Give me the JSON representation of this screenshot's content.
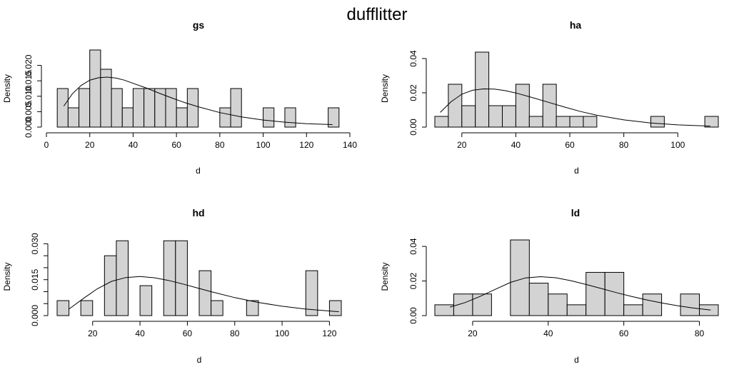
{
  "figure_title": "dufflitter",
  "chart_data": [
    {
      "type": "bar",
      "title": "gs",
      "xlabel": "d",
      "ylabel": "Density",
      "xlim": [
        0,
        140
      ],
      "ylim": [
        0,
        0.025
      ],
      "x_ticks": [
        0,
        20,
        40,
        60,
        80,
        100,
        120,
        140
      ],
      "x_tick_labels": [
        "0",
        "20",
        "40",
        "60",
        "80",
        "100",
        "120",
        "140"
      ],
      "y_ticks": [
        0,
        0.005,
        0.01,
        0.015,
        0.02
      ],
      "y_tick_labels": [
        "0.000",
        "0.005",
        "0.010",
        "0.015",
        "0.020"
      ],
      "bin_edges": [
        5,
        10,
        15,
        20,
        25,
        30,
        35,
        40,
        45,
        50,
        55,
        60,
        65,
        70,
        75,
        80,
        85,
        90,
        95,
        100,
        105,
        110,
        115,
        120,
        125,
        130,
        135
      ],
      "values": [
        0.0125,
        0.00625,
        0.0125,
        0.025,
        0.01875,
        0.0125,
        0.00625,
        0.0125,
        0.0125,
        0.0125,
        0.0125,
        0.00625,
        0.0125,
        0,
        0,
        0.00625,
        0.0125,
        0,
        0,
        0.00625,
        0,
        0.00625,
        0,
        0,
        0,
        0.00625
      ],
      "curve": {
        "x": [
          8,
          12,
          16,
          20,
          24,
          28,
          32,
          36,
          40,
          46,
          52,
          58,
          64,
          70,
          80,
          90,
          100,
          110,
          120,
          132
        ],
        "y": [
          0.0068,
          0.0108,
          0.0135,
          0.0152,
          0.016,
          0.0162,
          0.0159,
          0.0152,
          0.0142,
          0.0127,
          0.011,
          0.0094,
          0.0079,
          0.0066,
          0.0047,
          0.0033,
          0.0023,
          0.0016,
          0.0011,
          0.0008
        ]
      }
    },
    {
      "type": "bar",
      "title": "ha",
      "xlabel": "d",
      "ylabel": "Density",
      "xlim": [
        10,
        115
      ],
      "ylim": [
        0,
        0.045
      ],
      "x_ticks": [
        20,
        40,
        60,
        80,
        100
      ],
      "x_tick_labels": [
        "20",
        "40",
        "60",
        "80",
        "100"
      ],
      "y_ticks": [
        0,
        0.02,
        0.04
      ],
      "y_tick_labels": [
        "0.00",
        "0.02",
        "0.04"
      ],
      "bin_edges": [
        10,
        15,
        20,
        25,
        30,
        35,
        40,
        45,
        50,
        55,
        60,
        65,
        70,
        75,
        80,
        85,
        90,
        95,
        100,
        105,
        110,
        115
      ],
      "values": [
        0.00625,
        0.025,
        0.0125,
        0.04375,
        0.0125,
        0.0125,
        0.025,
        0.00625,
        0.025,
        0.00625,
        0.00625,
        0.00625,
        0,
        0,
        0,
        0,
        0.00625,
        0,
        0,
        0,
        0.00625
      ],
      "curve": {
        "x": [
          12,
          16,
          20,
          24,
          28,
          32,
          36,
          40,
          46,
          52,
          58,
          64,
          70,
          80,
          90,
          100,
          112
        ],
        "y": [
          0.0086,
          0.0148,
          0.0192,
          0.0215,
          0.0223,
          0.0222,
          0.0213,
          0.0199,
          0.0173,
          0.0145,
          0.0117,
          0.0091,
          0.0069,
          0.0042,
          0.0024,
          0.0013,
          0.0006
        ]
      }
    },
    {
      "type": "bar",
      "title": "hd",
      "xlabel": "d",
      "ylabel": "Density",
      "xlim": [
        5,
        125
      ],
      "ylim": [
        0,
        0.0325
      ],
      "x_ticks": [
        20,
        40,
        60,
        80,
        100,
        120
      ],
      "x_tick_labels": [
        "20",
        "40",
        "60",
        "80",
        "100",
        "120"
      ],
      "y_ticks": [
        0,
        0.005,
        0.01,
        0.015,
        0.02,
        0.025,
        0.03
      ],
      "y_tick_labels": [
        "0.000",
        "",
        "",
        "0.015",
        "",
        "",
        "0.030"
      ],
      "bin_edges": [
        5,
        10,
        15,
        20,
        25,
        30,
        35,
        40,
        45,
        50,
        55,
        60,
        65,
        70,
        75,
        80,
        85,
        90,
        95,
        100,
        105,
        110,
        115,
        120,
        125
      ],
      "values": [
        0.00625,
        0,
        0.00625,
        0,
        0.025,
        0.03125,
        0,
        0.0125,
        0,
        0.03125,
        0.03125,
        0,
        0.01875,
        0.00625,
        0,
        0,
        0.00625,
        0,
        0,
        0,
        0,
        0.01875,
        0,
        0.00625
      ],
      "curve": {
        "x": [
          10,
          16,
          22,
          28,
          34,
          40,
          46,
          52,
          58,
          64,
          70,
          80,
          90,
          100,
          110,
          124
        ],
        "y": [
          0.0027,
          0.0071,
          0.0112,
          0.0143,
          0.0159,
          0.0163,
          0.0158,
          0.0147,
          0.0132,
          0.0116,
          0.01,
          0.0075,
          0.0055,
          0.0039,
          0.0027,
          0.0016
        ]
      }
    },
    {
      "type": "bar",
      "title": "ld",
      "xlabel": "d",
      "ylabel": "Density",
      "xlim": [
        10,
        85
      ],
      "ylim": [
        0,
        0.045
      ],
      "x_ticks": [
        20,
        40,
        60,
        80
      ],
      "x_tick_labels": [
        "20",
        "40",
        "60",
        "80"
      ],
      "y_ticks": [
        0,
        0.02,
        0.04
      ],
      "y_tick_labels": [
        "0.00",
        "0.02",
        "0.04"
      ],
      "bin_edges": [
        10,
        15,
        20,
        25,
        30,
        35,
        40,
        45,
        50,
        55,
        60,
        65,
        70,
        75,
        80,
        85
      ],
      "values": [
        0.00625,
        0.0125,
        0.0125,
        0,
        0.04375,
        0.01875,
        0.0125,
        0.00625,
        0.025,
        0.025,
        0.00625,
        0.0125,
        0,
        0.0125,
        0.00625
      ],
      "curve": {
        "x": [
          14,
          18,
          22,
          26,
          30,
          34,
          38,
          42,
          46,
          50,
          54,
          58,
          62,
          66,
          70,
          74,
          78,
          83
        ],
        "y": [
          0.0049,
          0.0075,
          0.0111,
          0.0152,
          0.0192,
          0.0218,
          0.0225,
          0.0219,
          0.0202,
          0.018,
          0.0157,
          0.0133,
          0.0111,
          0.0091,
          0.0073,
          0.0058,
          0.0045,
          0.0032
        ]
      }
    }
  ]
}
